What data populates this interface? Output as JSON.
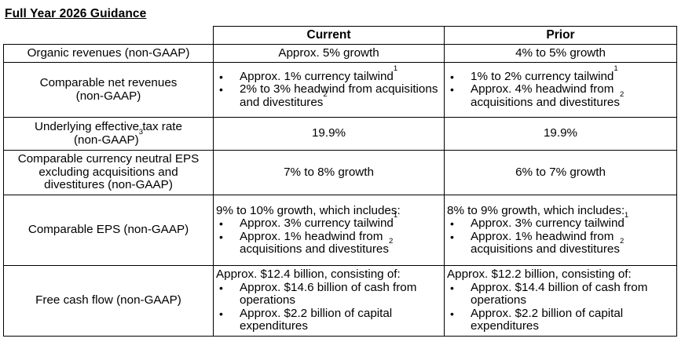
{
  "title": "Full Year 2026 Guidance",
  "columns": {
    "current": "Current",
    "prior": "Prior"
  },
  "rows": [
    {
      "metric_lines": [
        "Organic revenues (non-GAAP)"
      ],
      "current": {
        "text": "Approx. 5% growth"
      },
      "prior": {
        "text": "4% to 5% growth"
      }
    },
    {
      "metric_lines": [
        "Comparable net revenues",
        "(non-GAAP)"
      ],
      "current": {
        "bullets": [
          {
            "text": "Approx. 1% currency tailwind",
            "sup": "1"
          },
          {
            "text": "2% to 3% headwind from acquisitions and divestitures",
            "sup": "2"
          }
        ]
      },
      "prior": {
        "bullets": [
          {
            "text": "1% to 2% currency tailwind",
            "sup": "1"
          },
          {
            "text": "Approx. 4% headwind from acquisitions and divestitures",
            "sup": "2"
          }
        ]
      }
    },
    {
      "metric_lines": [
        "Underlying effective tax rate",
        "(non-GAAP)"
      ],
      "metric_sup": "3",
      "current": {
        "text": "19.9%"
      },
      "prior": {
        "text": "19.9%"
      }
    },
    {
      "metric_lines": [
        "Comparable currency neutral EPS",
        "excluding acquisitions and",
        "divestitures (non-GAAP)"
      ],
      "current": {
        "text": "7% to 8% growth"
      },
      "prior": {
        "text": "6% to 7% growth"
      }
    },
    {
      "metric_lines": [
        "Comparable EPS (non-GAAP)"
      ],
      "current": {
        "intro": "9% to 10% growth, which includes:",
        "bullets": [
          {
            "text": "Approx. 3% currency tailwind",
            "sup": "1"
          },
          {
            "text": "Approx. 1% headwind from acquisitions and divestitures",
            "sup": "2"
          }
        ]
      },
      "prior": {
        "intro": "8% to 9% growth, which includes:",
        "bullets": [
          {
            "text": "Approx. 3% currency tailwind",
            "sup": "1"
          },
          {
            "text": "Approx. 1% headwind from acquisitions and divestitures",
            "sup": "2"
          }
        ]
      }
    },
    {
      "metric_lines": [
        "Free cash flow (non-GAAP)"
      ],
      "current": {
        "intro": "Approx. $12.4 billion, consisting of:",
        "bullets": [
          {
            "text": "Approx. $14.6 billion of cash from operations"
          },
          {
            "text": "Approx. $2.2 billion of capital expenditures"
          }
        ]
      },
      "prior": {
        "intro": "Approx. $12.2 billion, consisting of:",
        "bullets": [
          {
            "text": "Approx. $14.4 billion of cash from operations"
          },
          {
            "text": "Approx. $2.2 billion of capital expenditures"
          }
        ]
      }
    }
  ]
}
